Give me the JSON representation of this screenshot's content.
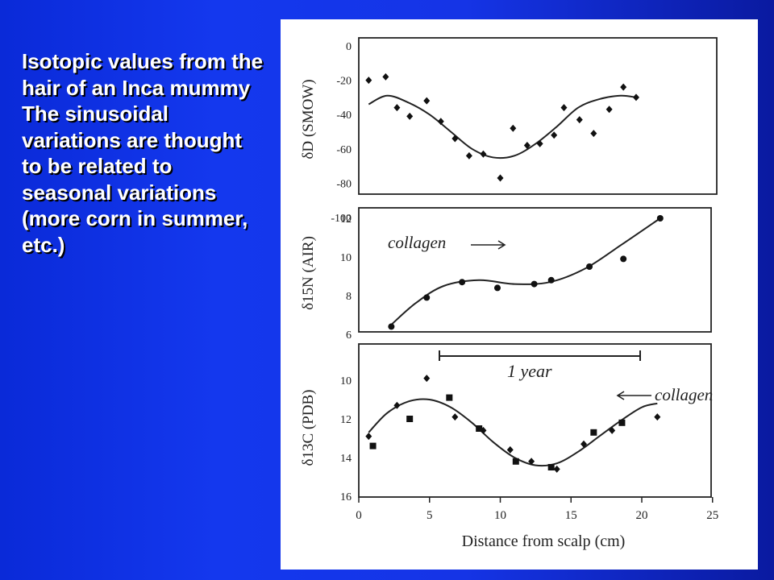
{
  "caption": "Isotopic values from the hair of an Inca mummy The sinusoidal variations are thought to be related to seasonal variations (more corn in summer, etc.)",
  "chart_data": [
    {
      "type": "scatter",
      "ylabel": "δD (SMOW)",
      "ylim": [
        -100,
        0
      ],
      "yticks": [
        "0",
        "-20",
        "-40",
        "-60",
        "-80",
        "-100"
      ],
      "xlim": [
        0,
        25
      ],
      "series": [
        {
          "marker": "diamond",
          "points": [
            [
              0.7,
              -20
            ],
            [
              1.9,
              -18
            ],
            [
              2.7,
              -36
            ],
            [
              3.6,
              -41
            ],
            [
              4.8,
              -32
            ],
            [
              5.8,
              -44
            ],
            [
              6.8,
              -54
            ],
            [
              7.8,
              -64
            ],
            [
              8.8,
              -63
            ],
            [
              10,
              -77
            ],
            [
              10.9,
              -48
            ],
            [
              11.9,
              -58
            ],
            [
              12.8,
              -57
            ],
            [
              13.8,
              -52
            ],
            [
              14.5,
              -36
            ],
            [
              15.6,
              -43
            ],
            [
              16.6,
              -51
            ],
            [
              17.7,
              -37
            ],
            [
              18.7,
              -24
            ],
            [
              19.6,
              -30
            ]
          ]
        }
      ],
      "fit": [
        [
          0.7,
          -34
        ],
        [
          2,
          -29
        ],
        [
          3.5,
          -33
        ],
        [
          5,
          -40
        ],
        [
          6.5,
          -50
        ],
        [
          8,
          -60
        ],
        [
          9.5,
          -65
        ],
        [
          11,
          -64
        ],
        [
          12.5,
          -57
        ],
        [
          14,
          -47
        ],
        [
          15.5,
          -36
        ],
        [
          17,
          -31
        ],
        [
          18.5,
          -29
        ],
        [
          19.6,
          -30
        ]
      ]
    },
    {
      "type": "scatter",
      "ylabel": "δ15N (AIR)",
      "ylim": [
        6,
        12
      ],
      "yticks": [
        "12",
        "10",
        "8",
        "6"
      ],
      "xlim": [
        0,
        25
      ],
      "annotations": [
        "collagen"
      ],
      "series": [
        {
          "marker": "circle",
          "points": [
            [
              2.3,
              6.4
            ],
            [
              4.8,
              7.9
            ],
            [
              7.3,
              8.7
            ],
            [
              9.8,
              8.4
            ],
            [
              12.4,
              8.6
            ],
            [
              13.6,
              8.8
            ],
            [
              16.3,
              9.5
            ],
            [
              18.7,
              9.9
            ],
            [
              21.3,
              12
            ]
          ]
        }
      ],
      "fit": [
        [
          2.3,
          6.5
        ],
        [
          4,
          7.6
        ],
        [
          6,
          8.5
        ],
        [
          8.5,
          8.8
        ],
        [
          11,
          8.6
        ],
        [
          13.5,
          8.7
        ],
        [
          16,
          9.4
        ],
        [
          18.5,
          10.6
        ],
        [
          21.3,
          12
        ]
      ]
    },
    {
      "type": "scatter",
      "ylabel": "δ13C (PDB)",
      "ylim": [
        -16,
        -10
      ],
      "yticks": [
        "10",
        "12",
        "14",
        "16"
      ],
      "yticks_values": [
        -10,
        -12,
        -14,
        -16
      ],
      "xlim": [
        0,
        25
      ],
      "xticks": [
        "0",
        "5",
        "10",
        "15",
        "20",
        "25"
      ],
      "xlabel": "Distance from scalp (cm)",
      "annotations": [
        "1 year",
        "collagen"
      ],
      "series": [
        {
          "marker": "diamond",
          "points": [
            [
              0.7,
              -12.9
            ],
            [
              2.7,
              -11.3
            ],
            [
              4.8,
              -9.9
            ],
            [
              6.8,
              -11.9
            ],
            [
              8.8,
              -12.6
            ],
            [
              10.7,
              -13.6
            ],
            [
              12.2,
              -14.2
            ],
            [
              14,
              -14.6
            ],
            [
              15.9,
              -13.3
            ],
            [
              17.9,
              -12.6
            ],
            [
              21.1,
              -11.9
            ]
          ]
        },
        {
          "marker": "square",
          "points": [
            [
              1,
              -13.4
            ],
            [
              3.6,
              -12
            ],
            [
              6.4,
              -10.9
            ],
            [
              8.5,
              -12.5
            ],
            [
              11.1,
              -14.2
            ],
            [
              13.6,
              -14.5
            ],
            [
              16.6,
              -12.7
            ],
            [
              18.6,
              -12.2
            ]
          ]
        }
      ],
      "fit": [
        [
          0.7,
          -12.7
        ],
        [
          2,
          -11.7
        ],
        [
          3.5,
          -11.1
        ],
        [
          5,
          -11
        ],
        [
          6.5,
          -11.4
        ],
        [
          8,
          -12.2
        ],
        [
          9.5,
          -13.2
        ],
        [
          11,
          -14
        ],
        [
          12.5,
          -14.4
        ],
        [
          14,
          -14.3
        ],
        [
          15.5,
          -13.7
        ],
        [
          17,
          -12.9
        ],
        [
          18.5,
          -12.1
        ],
        [
          20,
          -11.4
        ],
        [
          21.1,
          -11.2
        ]
      ]
    }
  ]
}
